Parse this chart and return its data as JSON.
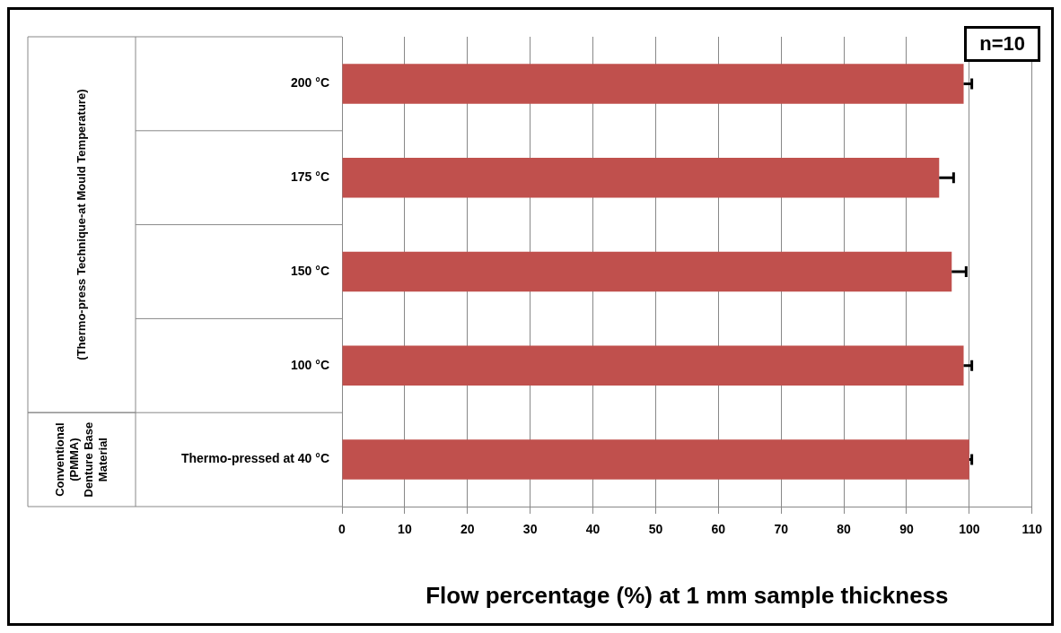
{
  "chart_data": {
    "type": "bar",
    "orientation": "horizontal",
    "xlabel": "Flow percentage (%) at 1 mm sample thickness",
    "categories": [
      "200 °C",
      "175 °C",
      "150 °C",
      "100 °C",
      "Thermo-pressed at 40 °C"
    ],
    "values": [
      99.1,
      95.2,
      97.2,
      99.1,
      100
    ],
    "errors": [
      [
        99.1,
        100.4
      ],
      [
        95.2,
        97.5
      ],
      [
        97.2,
        99.5
      ],
      [
        99.1,
        100.4
      ],
      [
        100,
        100.4
      ]
    ],
    "color": "#c0504d",
    "xlim": [
      0,
      110
    ],
    "xticks": [
      0,
      10,
      20,
      30,
      40,
      50,
      60,
      70,
      80,
      90,
      100,
      110
    ],
    "grid": "x",
    "annotations": [
      "n=10",
      "(Thermo-press Technique-at Mould Temperature)",
      "Conventional (PMMA) Denture Base Material"
    ]
  }
}
